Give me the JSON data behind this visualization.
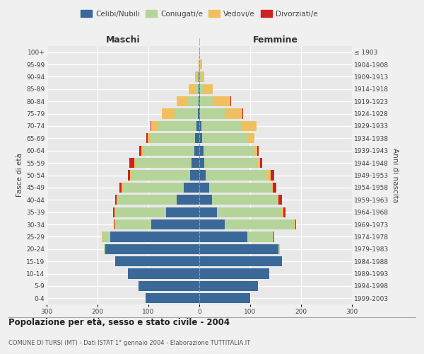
{
  "age_groups": [
    "0-4",
    "5-9",
    "10-14",
    "15-19",
    "20-24",
    "25-29",
    "30-34",
    "35-39",
    "40-44",
    "45-49",
    "50-54",
    "55-59",
    "60-64",
    "65-69",
    "70-74",
    "75-79",
    "80-84",
    "85-89",
    "90-94",
    "95-99",
    "100+"
  ],
  "birth_years": [
    "1999-2003",
    "1994-1998",
    "1989-1993",
    "1984-1988",
    "1979-1983",
    "1974-1978",
    "1969-1973",
    "1964-1968",
    "1959-1963",
    "1954-1958",
    "1949-1953",
    "1944-1948",
    "1939-1943",
    "1934-1938",
    "1929-1933",
    "1924-1928",
    "1919-1923",
    "1914-1918",
    "1909-1913",
    "1904-1908",
    "≤ 1903"
  ],
  "maschi": {
    "celibi": [
      105,
      120,
      140,
      165,
      185,
      175,
      95,
      65,
      45,
      30,
      18,
      15,
      10,
      8,
      5,
      3,
      2,
      1,
      1,
      0,
      0
    ],
    "coniugati": [
      0,
      0,
      0,
      0,
      3,
      15,
      70,
      100,
      115,
      120,
      115,
      110,
      100,
      88,
      75,
      45,
      22,
      8,
      3,
      1,
      0
    ],
    "vedovi": [
      0,
      0,
      0,
      0,
      0,
      1,
      1,
      2,
      2,
      3,
      3,
      3,
      4,
      6,
      15,
      25,
      20,
      12,
      4,
      1,
      0
    ],
    "divorziati": [
      0,
      0,
      0,
      0,
      0,
      1,
      2,
      2,
      3,
      4,
      4,
      9,
      4,
      2,
      1,
      1,
      1,
      0,
      0,
      0,
      0
    ]
  },
  "femmine": {
    "nubili": [
      100,
      115,
      138,
      162,
      155,
      95,
      50,
      35,
      25,
      20,
      12,
      10,
      8,
      6,
      4,
      2,
      1,
      1,
      0,
      0,
      0
    ],
    "coniugate": [
      0,
      0,
      0,
      0,
      4,
      50,
      135,
      128,
      128,
      122,
      120,
      105,
      100,
      90,
      78,
      48,
      25,
      8,
      4,
      1,
      0
    ],
    "vedove": [
      0,
      0,
      0,
      0,
      0,
      1,
      4,
      2,
      3,
      3,
      8,
      4,
      6,
      12,
      30,
      35,
      35,
      18,
      6,
      4,
      1
    ],
    "divorziate": [
      0,
      0,
      0,
      0,
      0,
      1,
      1,
      4,
      6,
      6,
      7,
      4,
      2,
      1,
      1,
      1,
      1,
      0,
      0,
      0,
      0
    ]
  },
  "colors": {
    "celibi_nubili": "#3a6898",
    "coniugati": "#b5d49a",
    "vedovi": "#f0c060",
    "divorziati": "#cc2222"
  },
  "title": "Popolazione per età, sesso e stato civile - 2004",
  "subtitle": "COMUNE DI TURSI (MT) - Dati ISTAT 1° gennaio 2004 - Elaborazione TUTTITALIA.IT",
  "xlabel_left": "Maschi",
  "xlabel_right": "Femmine",
  "ylabel_left": "Fasce di età",
  "ylabel_right": "Anni di nascita",
  "xlim": 300,
  "legend_labels": [
    "Celibi/Nubili",
    "Coniugati/e",
    "Vedovi/e",
    "Divorziati/e"
  ],
  "background_color": "#f0f0f0",
  "plot_bg_color": "#e8e8e8",
  "grid_color": "#ffffff",
  "text_color": "#444444"
}
